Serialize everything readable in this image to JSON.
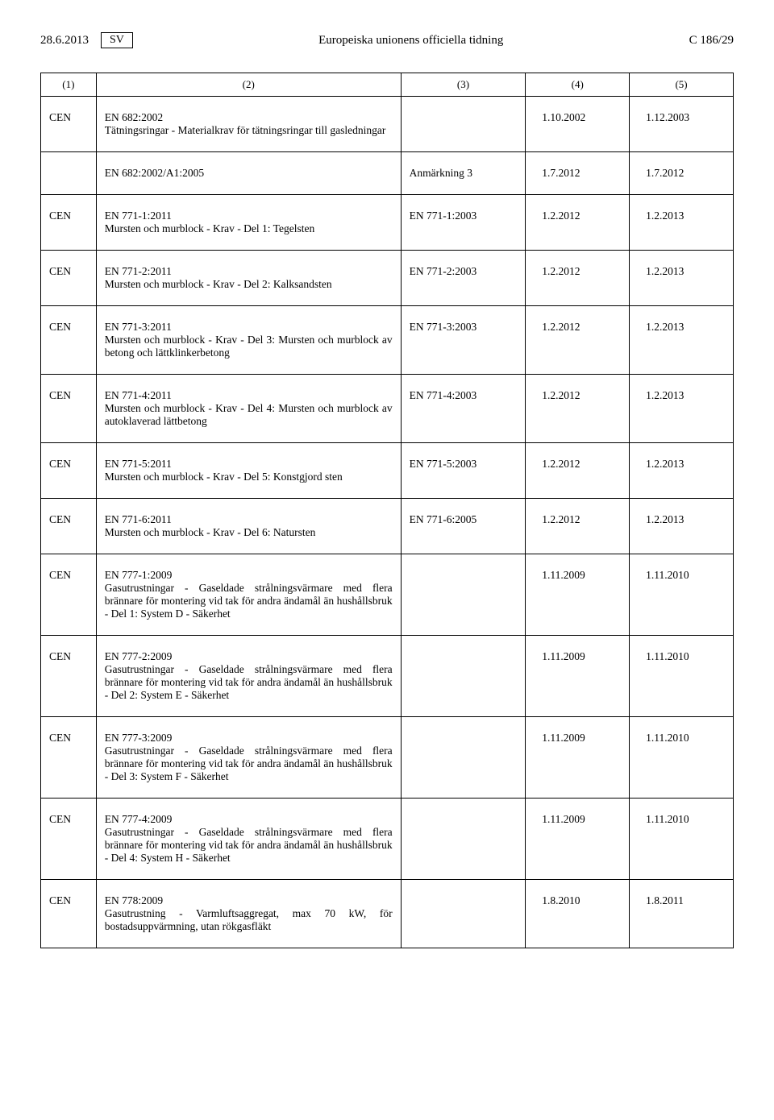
{
  "header": {
    "date": "28.6.2013",
    "lang": "SV",
    "journal": "Europeiska unionens officiella tidning",
    "page": "C 186/29"
  },
  "columns": [
    "(1)",
    "(2)",
    "(3)",
    "(4)",
    "(5)"
  ],
  "rows": [
    {
      "org": "CEN",
      "code": "EN 682:2002",
      "title": "Tätningsringar - Materialkrav för tätningsringar till gasledningar",
      "ref": "",
      "d1": "1.10.2002",
      "d2": "1.12.2003"
    },
    {
      "org": "",
      "code": "EN 682:2002/A1:2005",
      "title": "",
      "ref": "Anmärkning 3",
      "d1": "1.7.2012",
      "d2": "1.7.2012"
    },
    {
      "org": "CEN",
      "code": "EN 771-1:2011",
      "title": "Mursten och murblock - Krav - Del 1: Tegelsten",
      "ref": "EN 771-1:2003",
      "d1": "1.2.2012",
      "d2": "1.2.2013"
    },
    {
      "org": "CEN",
      "code": "EN 771-2:2011",
      "title": "Mursten och murblock - Krav - Del 2: Kalksandsten",
      "ref": "EN 771-2:2003",
      "d1": "1.2.2012",
      "d2": "1.2.2013"
    },
    {
      "org": "CEN",
      "code": "EN 771-3:2011",
      "title": "Mursten och murblock - Krav - Del 3: Mursten och murblock av betong och lättklinkerbetong",
      "ref": "EN 771-3:2003",
      "d1": "1.2.2012",
      "d2": "1.2.2013"
    },
    {
      "org": "CEN",
      "code": "EN 771-4:2011",
      "title": "Mursten och murblock - Krav - Del 4: Mursten och murblock av autoklaverad lättbetong",
      "ref": "EN 771-4:2003",
      "d1": "1.2.2012",
      "d2": "1.2.2013"
    },
    {
      "org": "CEN",
      "code": "EN 771-5:2011",
      "title": "Mursten och murblock - Krav - Del 5: Konstgjord sten",
      "ref": "EN 771-5:2003",
      "d1": "1.2.2012",
      "d2": "1.2.2013"
    },
    {
      "org": "CEN",
      "code": "EN 771-6:2011",
      "title": "Mursten och murblock - Krav - Del 6: Natursten",
      "ref": "EN 771-6:2005",
      "d1": "1.2.2012",
      "d2": "1.2.2013"
    },
    {
      "org": "CEN",
      "code": "EN 777-1:2009",
      "title": "Gasutrustningar - Gaseldade strålningsvärmare med flera brännare för montering vid tak för andra ändamål än hushållsbruk - Del 1: System D - Säkerhet",
      "ref": "",
      "d1": "1.11.2009",
      "d2": "1.11.2010"
    },
    {
      "org": "CEN",
      "code": "EN 777-2:2009",
      "title": "Gasutrustningar - Gaseldade strålningsvärmare med flera brännare för montering vid tak för andra ändamål än hushållsbruk - Del 2: System E - Säkerhet",
      "ref": "",
      "d1": "1.11.2009",
      "d2": "1.11.2010"
    },
    {
      "org": "CEN",
      "code": "EN 777-3:2009",
      "title": "Gasutrustningar - Gaseldade strålningsvärmare med flera brännare för montering vid tak för andra ändamål än hushållsbruk - Del 3: System F - Säkerhet",
      "ref": "",
      "d1": "1.11.2009",
      "d2": "1.11.2010"
    },
    {
      "org": "CEN",
      "code": "EN 777-4:2009",
      "title": "Gasutrustningar - Gaseldade strålningsvärmare med flera brännare för montering vid tak för andra ändamål än hushållsbruk - Del 4: System H - Säkerhet",
      "ref": "",
      "d1": "1.11.2009",
      "d2": "1.11.2010"
    },
    {
      "org": "CEN",
      "code": "EN 778:2009",
      "title": "Gasutrustning - Varmluftsaggregat, max 70 kW, för bostadsuppvärmning, utan rökgasfläkt",
      "ref": "",
      "d1": "1.8.2010",
      "d2": "1.8.2011"
    }
  ]
}
